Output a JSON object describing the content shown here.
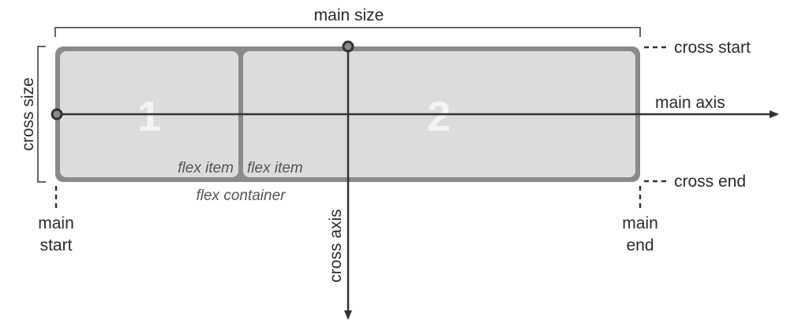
{
  "diagram": {
    "labels": {
      "main_size": "main size",
      "cross_size": "cross size",
      "cross_start": "cross start",
      "cross_end": "cross end",
      "main_axis": "main axis",
      "cross_axis": "cross axis",
      "main_start_line1": "main",
      "main_start_line2": "start",
      "main_end_line1": "main",
      "main_end_line2": "end",
      "flex_container": "flex container"
    },
    "items": [
      {
        "number": "1",
        "caption": "flex item"
      },
      {
        "number": "2",
        "caption": "flex item"
      }
    ],
    "colors": {
      "item_fill": "#dcdcdc",
      "item_border": "#8a8a8a",
      "container_border": "#8a8a8a",
      "line": "#333333",
      "number_text": "#f4f4f4"
    }
  }
}
